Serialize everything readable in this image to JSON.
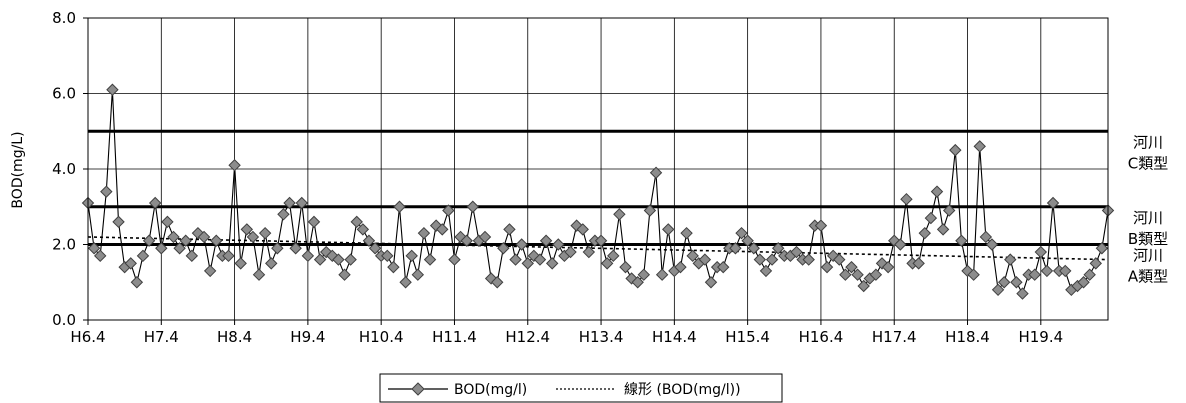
{
  "chart_data": {
    "type": "line",
    "ylabel": "BOD(mg/L)",
    "ylim": [
      0,
      8
    ],
    "yticks": [
      "0.0",
      "2.0",
      "4.0",
      "6.0",
      "8.0"
    ],
    "ytick_values": [
      0,
      2,
      4,
      6,
      8
    ],
    "x_tick_labels": [
      "H6.4",
      "H7.4",
      "H8.4",
      "H9.4",
      "H10.4",
      "H11.4",
      "H12.4",
      "H13.4",
      "H14.4",
      "H15.4",
      "H16.4",
      "H17.4",
      "H18.4",
      "H19.4"
    ],
    "grid": true,
    "legend_position": "bottom",
    "series": [
      {
        "name": "BOD(mg/l)",
        "marker": "diamond",
        "color": "#606060",
        "values": [
          3.1,
          1.9,
          1.7,
          3.4,
          6.1,
          2.6,
          1.4,
          1.5,
          1.0,
          1.7,
          2.1,
          3.1,
          1.9,
          2.6,
          2.2,
          1.9,
          2.1,
          1.7,
          2.3,
          2.2,
          1.3,
          2.1,
          1.7,
          1.7,
          4.1,
          1.5,
          2.4,
          2.2,
          1.2,
          2.3,
          1.5,
          1.9,
          2.8,
          3.1,
          1.9,
          3.1,
          1.7,
          2.6,
          1.6,
          1.8,
          1.7,
          1.6,
          1.2,
          1.6,
          2.6,
          2.4,
          2.1,
          1.9,
          1.7,
          1.7,
          1.4,
          3.0,
          1.0,
          1.7,
          1.2,
          2.3,
          1.6,
          2.5,
          2.4,
          2.9,
          1.6,
          2.2,
          2.1,
          3.0,
          2.1,
          2.2,
          1.1,
          1.0,
          1.9,
          2.4,
          1.6,
          2.0,
          1.5,
          1.7,
          1.6,
          2.1,
          1.5,
          2.0,
          1.7,
          1.8,
          2.5,
          2.4,
          1.8,
          2.1,
          2.1,
          1.5,
          1.7,
          2.8,
          1.4,
          1.1,
          1.0,
          1.2,
          2.9,
          3.9,
          1.2,
          2.4,
          1.3,
          1.4,
          2.3,
          1.7,
          1.5,
          1.6,
          1.0,
          1.4,
          1.4,
          1.9,
          1.9,
          2.3,
          2.1,
          1.9,
          1.6,
          1.3,
          1.6,
          1.9,
          1.7,
          1.7,
          1.8,
          1.6,
          1.6,
          2.5,
          2.5,
          1.4,
          1.7,
          1.6,
          1.2,
          1.4,
          1.2,
          0.9,
          1.1,
          1.2,
          1.5,
          1.4,
          2.1,
          2.0,
          3.2,
          1.5,
          1.5,
          2.3,
          2.7,
          3.4,
          2.4,
          2.9,
          4.5,
          2.1,
          1.3,
          1.2,
          4.6,
          2.2,
          2.0,
          0.8,
          1.0,
          1.6,
          1.0,
          0.7,
          1.2,
          1.2,
          1.8,
          1.3,
          3.1,
          1.3,
          1.3,
          0.8,
          0.9,
          1.0,
          1.2,
          1.5,
          1.9,
          2.9
        ]
      },
      {
        "name": "線形 (BOD(mg/l))",
        "style": "dotted",
        "color": "#000000",
        "x_range": [
          "H6.4",
          "H19.4"
        ],
        "start_value": 2.2,
        "end_value": 1.6
      }
    ],
    "reference_lines": [
      {
        "value": 5.0,
        "label_line1": "河川",
        "label_line2": "C類型"
      },
      {
        "value": 3.0,
        "label_line1": "河川",
        "label_line2": "B類型"
      },
      {
        "value": 2.0,
        "label_line1": "河川",
        "label_line2": "A類型"
      }
    ]
  }
}
